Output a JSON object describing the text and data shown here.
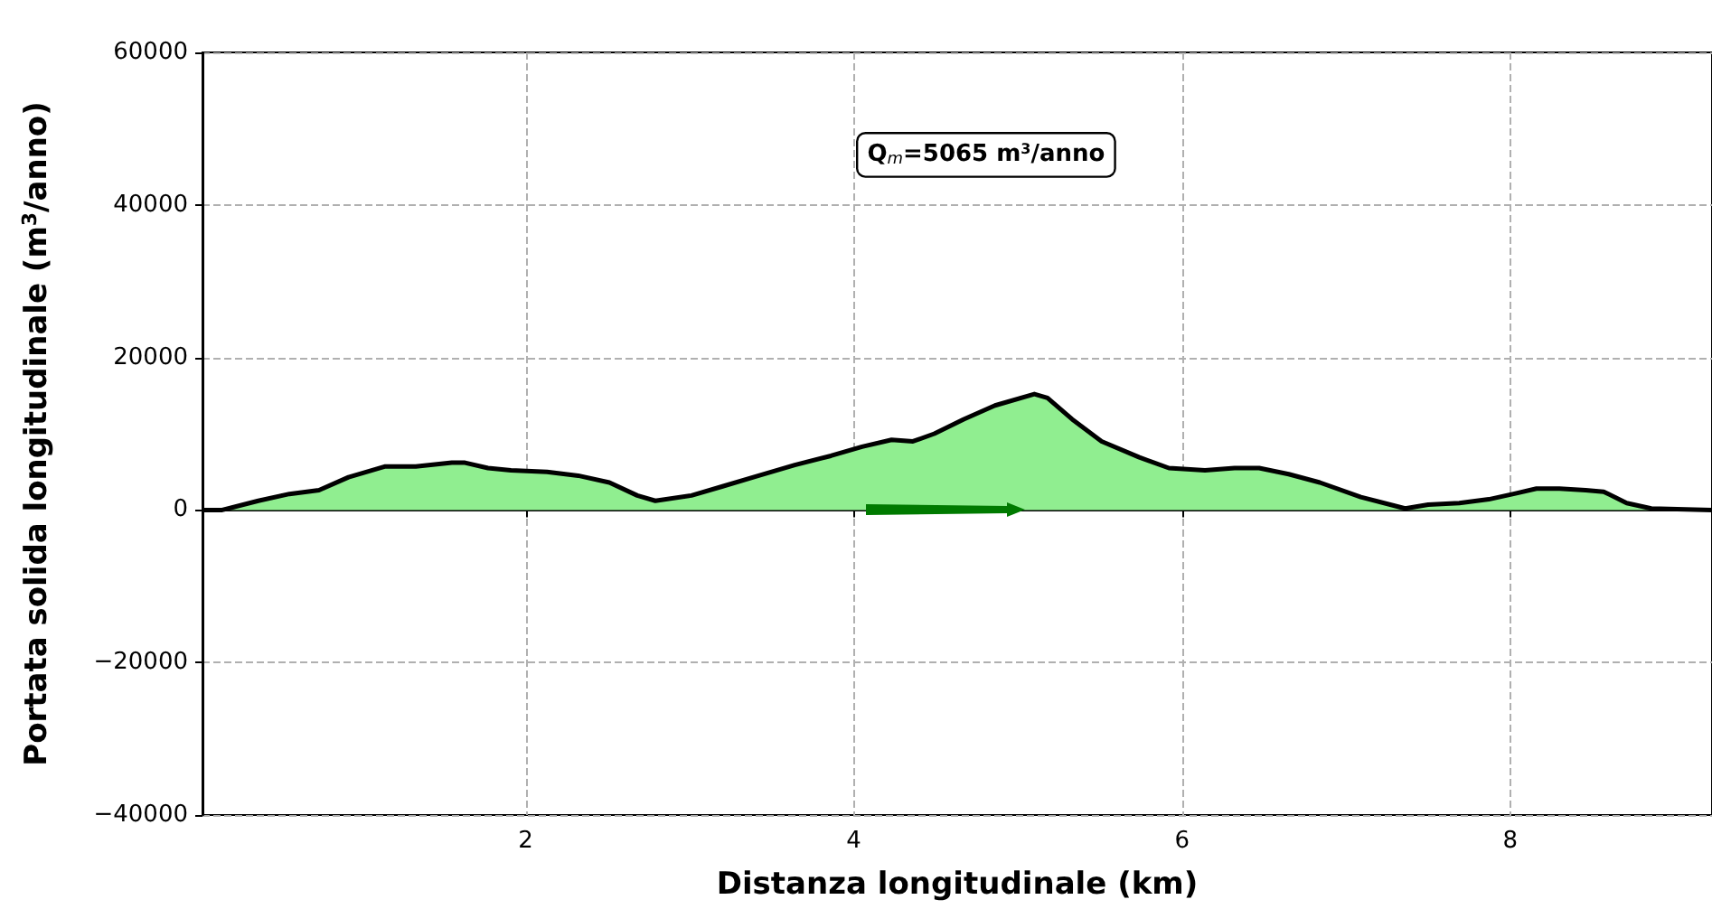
{
  "chart_data": {
    "type": "area",
    "xlabel": "Distanza longitudinale (km)",
    "ylabel": "Portata solida longitudinale (m$^{3}$/anno)",
    "annotations": [
      "Q$_{m}$=5065 m$^{3}$/anno"
    ],
    "x": [
      0.04,
      0.15,
      0.37,
      0.56,
      0.74,
      0.92,
      1.14,
      1.33,
      1.55,
      1.63,
      1.77,
      1.91,
      2.13,
      2.32,
      2.51,
      2.68,
      2.79,
      3.01,
      3.2,
      3.42,
      3.64,
      3.86,
      4.05,
      4.23,
      4.36,
      4.49,
      4.67,
      4.86,
      5.1,
      5.18,
      5.33,
      5.51,
      5.74,
      5.92,
      6.14,
      6.32,
      6.47,
      6.65,
      6.84,
      7.09,
      7.36,
      7.5,
      7.69,
      7.87,
      8.02,
      8.16,
      8.3,
      8.46,
      8.57,
      8.71,
      8.86,
      9.23
    ],
    "series": [
      {
        "color": "#90ee90",
        "values": [
          0,
          0,
          1200,
          2100,
          2600,
          4300,
          5700,
          5700,
          6200,
          6200,
          5500,
          5200,
          5000,
          4500,
          3600,
          1900,
          1200,
          1900,
          3100,
          4500,
          5900,
          7100,
          8300,
          9200,
          9000,
          10000,
          11900,
          13700,
          15200,
          14700,
          11900,
          9000,
          6900,
          5500,
          5200,
          5500,
          5500,
          4700,
          3600,
          1700,
          200,
          700,
          900,
          1400,
          2100,
          2800,
          2800,
          2600,
          2400,
          900,
          200,
          0
        ]
      }
    ],
    "xlim": [
      0.03,
      9.23
    ],
    "ylim": [
      -40000,
      60000
    ],
    "xticks": [
      2,
      4,
      6,
      8
    ],
    "yticks": [
      -40000,
      -20000,
      0,
      20000,
      40000,
      60000
    ],
    "grid": true,
    "marker": "none",
    "line_style": "solid"
  }
}
